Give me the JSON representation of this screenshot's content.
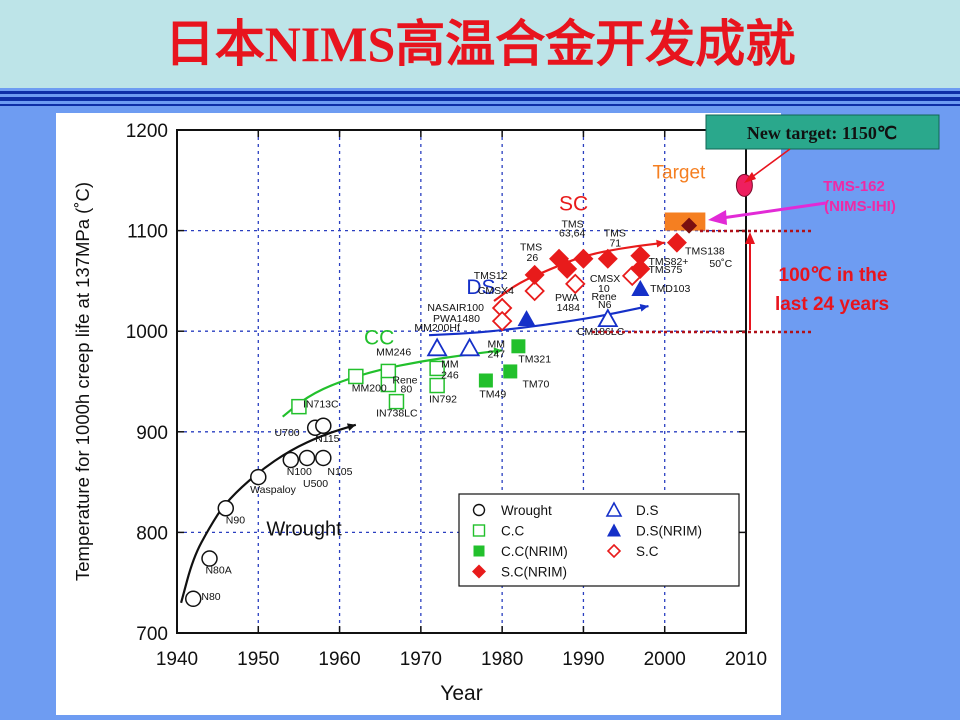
{
  "slide": {
    "title": "日本NIMS高温合金开发成就",
    "colors": {
      "title": "#e8141e",
      "title_bar": "#bde4e8",
      "background": "#6e9cf2",
      "rule": "#0e2fa8"
    }
  },
  "callouts": {
    "new_target": "New target: 1150℃",
    "tms162_line1": "TMS-162",
    "tms162_line2": "(NIMS-IHI)",
    "gain_line1": "100℃ in the",
    "gain_line2": "last 24 years"
  },
  "chart_data": {
    "type": "scatter",
    "ylabel": "Temperature for 1000h creep life at 137MPa (˚C)",
    "xlabel": "Year",
    "xlim": [
      1940,
      2010
    ],
    "ylim": [
      700,
      1200
    ],
    "xticks": [
      1940,
      1950,
      1960,
      1970,
      1980,
      1990,
      2000,
      2010
    ],
    "yticks": [
      700,
      800,
      900,
      1000,
      1100,
      1200
    ],
    "grid": true,
    "legend": {
      "position": "lower-right",
      "entries": [
        {
          "label": "Wrought",
          "marker": "open-circle"
        },
        {
          "label": "D.S",
          "marker": "open-triangle"
        },
        {
          "label": "C.C",
          "marker": "open-square"
        },
        {
          "label": "D.S(NRIM)",
          "marker": "filled-triangle"
        },
        {
          "label": "C.C(NRIM)",
          "marker": "filled-square"
        },
        {
          "label": "S.C",
          "marker": "open-diamond"
        },
        {
          "label": "S.C(NRIM)",
          "marker": "filled-diamond"
        }
      ]
    },
    "series": [
      {
        "name": "Wrought",
        "marker": "open-circle",
        "color": "#111111",
        "points": [
          {
            "x": 1942,
            "y": 734
          },
          {
            "x": 1944,
            "y": 774
          },
          {
            "x": 1946,
            "y": 824
          },
          {
            "x": 1950,
            "y": 855
          },
          {
            "x": 1954,
            "y": 872
          },
          {
            "x": 1956,
            "y": 874
          },
          {
            "x": 1958,
            "y": 874
          },
          {
            "x": 1957,
            "y": 904
          },
          {
            "x": 1958,
            "y": 906
          }
        ]
      },
      {
        "name": "C.C",
        "marker": "open-square",
        "color": "#22c02c",
        "points": [
          {
            "x": 1955,
            "y": 925
          },
          {
            "x": 1962,
            "y": 955
          },
          {
            "x": 1966,
            "y": 960
          },
          {
            "x": 1966,
            "y": 947
          },
          {
            "x": 1967,
            "y": 930
          },
          {
            "x": 1972,
            "y": 963
          },
          {
            "x": 1972,
            "y": 946
          }
        ]
      },
      {
        "name": "C.C(NRIM)",
        "marker": "filled-square",
        "color": "#22c02c",
        "points": [
          {
            "x": 1978,
            "y": 951
          },
          {
            "x": 1981,
            "y": 960
          },
          {
            "x": 1982,
            "y": 985
          }
        ]
      },
      {
        "name": "D.S",
        "marker": "open-triangle",
        "color": "#1530c8",
        "points": [
          {
            "x": 1972,
            "y": 983
          },
          {
            "x": 1976,
            "y": 983
          },
          {
            "x": 1993,
            "y": 1012
          }
        ]
      },
      {
        "name": "D.S(NRIM)",
        "marker": "filled-triangle",
        "color": "#1530c8",
        "points": [
          {
            "x": 1983,
            "y": 1012
          },
          {
            "x": 1997,
            "y": 1042
          }
        ]
      },
      {
        "name": "S.C",
        "marker": "open-diamond",
        "color": "#e81b1b",
        "points": [
          {
            "x": 1980,
            "y": 1023
          },
          {
            "x": 1980,
            "y": 1010
          },
          {
            "x": 1984,
            "y": 1040
          },
          {
            "x": 1989,
            "y": 1047
          },
          {
            "x": 1996,
            "y": 1055
          }
        ]
      },
      {
        "name": "S.C(NRIM)",
        "marker": "filled-diamond",
        "color": "#e81b1b",
        "points": [
          {
            "x": 1984,
            "y": 1056
          },
          {
            "x": 1987,
            "y": 1072
          },
          {
            "x": 1988,
            "y": 1062
          },
          {
            "x": 1990,
            "y": 1072
          },
          {
            "x": 1993,
            "y": 1072
          },
          {
            "x": 1997,
            "y": 1075
          },
          {
            "x": 1997,
            "y": 1062
          },
          {
            "x": 2001.5,
            "y": 1088
          }
        ]
      },
      {
        "name": "TMS-162",
        "marker": "filled-diamond-dark",
        "color": "#7a1010",
        "points": [
          {
            "x": 2003,
            "y": 1105
          }
        ]
      },
      {
        "name": "New target",
        "marker": "ellipse",
        "color": "#ee1f5f",
        "points": [
          {
            "x": 2009.8,
            "y": 1145
          }
        ]
      }
    ],
    "curves": [
      {
        "name": "Wrought",
        "color": "#111111",
        "points": [
          [
            1940.5,
            730
          ],
          [
            1942,
            775
          ],
          [
            1944,
            805
          ],
          [
            1946,
            830
          ],
          [
            1950,
            860
          ],
          [
            1954,
            882
          ],
          [
            1958,
            897
          ],
          [
            1962,
            907
          ]
        ]
      },
      {
        "name": "CC",
        "color": "#22c02c",
        "points": [
          [
            1953,
            915
          ],
          [
            1956,
            935
          ],
          [
            1960,
            950
          ],
          [
            1965,
            962
          ],
          [
            1970,
            970
          ],
          [
            1975,
            976
          ],
          [
            1980,
            981
          ]
        ]
      },
      {
        "name": "DS",
        "color": "#1530c8",
        "points": [
          [
            1971,
            996
          ],
          [
            1976,
            998
          ],
          [
            1980,
            1001
          ],
          [
            1985,
            1006
          ],
          [
            1990,
            1012
          ],
          [
            1994,
            1018
          ],
          [
            1998,
            1025
          ]
        ]
      },
      {
        "name": "SC",
        "color": "#e81b1b",
        "points": [
          [
            1979,
            1030
          ],
          [
            1982,
            1048
          ],
          [
            1986,
            1062
          ],
          [
            1990,
            1075
          ],
          [
            1995,
            1083
          ],
          [
            2000,
            1088
          ]
        ]
      }
    ],
    "curve_labels": [
      {
        "text": "Wrought",
        "x": 1951,
        "y": 797,
        "color": "#111111"
      },
      {
        "text": "CC",
        "x": 1963,
        "y": 987,
        "color": "#22c02c"
      },
      {
        "text": "DS",
        "x": 1975.6,
        "y": 1037,
        "color": "#1530c8"
      },
      {
        "text": "SC",
        "x": 1987,
        "y": 1120,
        "color": "#e81b1b"
      }
    ],
    "annotations": [
      {
        "text": "N80",
        "x": 1943,
        "y": 733
      },
      {
        "text": "N80A",
        "x": 1943.5,
        "y": 759
      },
      {
        "text": "N90",
        "x": 1946,
        "y": 809
      },
      {
        "text": "Waspaloy",
        "x": 1949,
        "y": 839
      },
      {
        "text": "N100",
        "x": 1953.5,
        "y": 857
      },
      {
        "text": "U500",
        "x": 1955.5,
        "y": 845
      },
      {
        "text": "N105",
        "x": 1958.5,
        "y": 857
      },
      {
        "text": "U700",
        "x": 1952,
        "y": 896
      },
      {
        "text": "N115",
        "x": 1957,
        "y": 890
      },
      {
        "text": "IN713C",
        "x": 1955.5,
        "y": 924
      },
      {
        "text": "MM200",
        "x": 1961.5,
        "y": 940
      },
      {
        "text": "MM246",
        "x": 1964.5,
        "y": 976
      },
      {
        "text": "Rene",
        "x": 1966.5,
        "y": 948
      },
      {
        "text": "80",
        "x": 1967.5,
        "y": 939
      },
      {
        "text": "IN738LC",
        "x": 1964.5,
        "y": 915
      },
      {
        "text": "IN792",
        "x": 1971,
        "y": 929
      },
      {
        "text": "MM",
        "x": 1972.5,
        "y": 964
      },
      {
        "text": "246",
        "x": 1972.5,
        "y": 953
      },
      {
        "text": "MM",
        "x": 1978.2,
        "y": 984
      },
      {
        "text": "247",
        "x": 1978.2,
        "y": 974
      },
      {
        "text": "TM321",
        "x": 1982,
        "y": 969
      },
      {
        "text": "TM70",
        "x": 1982.5,
        "y": 944
      },
      {
        "text": "TM49",
        "x": 1977.2,
        "y": 934
      },
      {
        "text": "MM200Hf",
        "x": 1969.2,
        "y": 1000
      },
      {
        "text": "PWA1480",
        "x": 1971.5,
        "y": 1009
      },
      {
        "text": "NASAIR100",
        "x": 1970.8,
        "y": 1020
      },
      {
        "text": "CMSX4",
        "x": 1977,
        "y": 1037
      },
      {
        "text": "TMS12",
        "x": 1976.5,
        "y": 1052
      },
      {
        "text": "TMS",
        "x": 1982.2,
        "y": 1080
      },
      {
        "text": "26",
        "x": 1983,
        "y": 1070
      },
      {
        "text": "TMS",
        "x": 1987.3,
        "y": 1103
      },
      {
        "text": "63,64",
        "x": 1987,
        "y": 1094
      },
      {
        "text": "TMS",
        "x": 1992.5,
        "y": 1094
      },
      {
        "text": "71",
        "x": 1993.2,
        "y": 1084
      },
      {
        "text": "PWA",
        "x": 1986.5,
        "y": 1030
      },
      {
        "text": "1484",
        "x": 1986.7,
        "y": 1020
      },
      {
        "text": "CMSX",
        "x": 1990.8,
        "y": 1049
      },
      {
        "text": "10",
        "x": 1991.8,
        "y": 1039
      },
      {
        "text": "Rene",
        "x": 1991,
        "y": 1031
      },
      {
        "text": "N6",
        "x": 1991.8,
        "y": 1023
      },
      {
        "text": "CM186LC",
        "x": 1989.2,
        "y": 996
      },
      {
        "text": "TMD103",
        "x": 1998.2,
        "y": 1039
      },
      {
        "text": "TMS82+",
        "x": 1998,
        "y": 1066
      },
      {
        "text": "TMS75",
        "x": 1998,
        "y": 1058
      },
      {
        "text": "TMS138",
        "x": 2002.5,
        "y": 1076
      },
      {
        "text": "50˚C",
        "x": 2005.5,
        "y": 1064
      },
      {
        "text": "Target",
        "x": 1998.5,
        "y": 1152
      }
    ],
    "target_box": {
      "x": [
        2000,
        2005
      ],
      "y": [
        1100,
        1118
      ],
      "color": "#f57f21"
    }
  }
}
